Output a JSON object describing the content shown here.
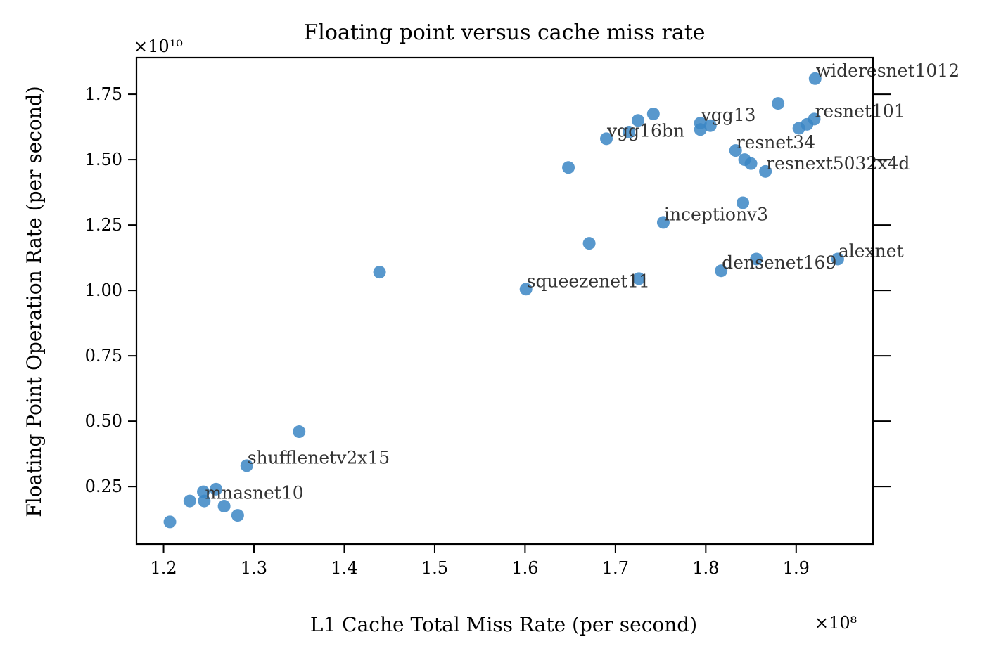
{
  "chart_data": {
    "type": "scatter",
    "title": "Floating point versus cache miss rate",
    "xlabel": "L1 Cache Total Miss Rate (per second)",
    "ylabel": "Floating Point Operation Rate (per second)",
    "x_multiplier_label": "×10⁸",
    "y_multiplier_label": "×10¹⁰",
    "xlim": [
      1.17,
      1.985
    ],
    "ylim": [
      0.03,
      1.89
    ],
    "x_ticks": [
      1.2,
      1.3,
      1.4,
      1.5,
      1.6,
      1.7,
      1.8,
      1.9
    ],
    "x_tick_labels": [
      "1.2",
      "1.3",
      "1.4",
      "1.5",
      "1.6",
      "1.7",
      "1.8",
      "1.9"
    ],
    "y_ticks": [
      0.25,
      0.5,
      0.75,
      1.0,
      1.25,
      1.5,
      1.75
    ],
    "y_tick_labels": [
      "0.25",
      "0.50",
      "0.75",
      "1.00",
      "1.25",
      "1.50",
      "1.75"
    ],
    "grid": false,
    "color": "#3b86c4",
    "points": [
      {
        "x": 1.921,
        "y": 1.81,
        "label": "wideresnet1012"
      },
      {
        "x": 1.88,
        "y": 1.715,
        "label": ""
      },
      {
        "x": 1.92,
        "y": 1.655,
        "label": "resnet101"
      },
      {
        "x": 1.912,
        "y": 1.635,
        "label": ""
      },
      {
        "x": 1.903,
        "y": 1.62,
        "label": ""
      },
      {
        "x": 1.742,
        "y": 1.675,
        "label": ""
      },
      {
        "x": 1.725,
        "y": 1.65,
        "label": ""
      },
      {
        "x": 1.715,
        "y": 1.605,
        "label": ""
      },
      {
        "x": 1.69,
        "y": 1.58,
        "label": "vgg16bn"
      },
      {
        "x": 1.794,
        "y": 1.64,
        "label": "vgg13"
      },
      {
        "x": 1.805,
        "y": 1.63,
        "label": ""
      },
      {
        "x": 1.794,
        "y": 1.615,
        "label": ""
      },
      {
        "x": 1.833,
        "y": 1.535,
        "label": "resnet34"
      },
      {
        "x": 1.843,
        "y": 1.5,
        "label": ""
      },
      {
        "x": 1.85,
        "y": 1.485,
        "label": ""
      },
      {
        "x": 1.866,
        "y": 1.455,
        "label": "resnext5032x4d"
      },
      {
        "x": 1.648,
        "y": 1.47,
        "label": ""
      },
      {
        "x": 1.841,
        "y": 1.335,
        "label": ""
      },
      {
        "x": 1.753,
        "y": 1.26,
        "label": "inceptionv3"
      },
      {
        "x": 1.671,
        "y": 1.18,
        "label": ""
      },
      {
        "x": 1.946,
        "y": 1.12,
        "label": "alexnet"
      },
      {
        "x": 1.856,
        "y": 1.12,
        "label": ""
      },
      {
        "x": 1.817,
        "y": 1.075,
        "label": "densenet169"
      },
      {
        "x": 1.726,
        "y": 1.045,
        "label": ""
      },
      {
        "x": 1.601,
        "y": 1.005,
        "label": "squeezenet11"
      },
      {
        "x": 1.439,
        "y": 1.07,
        "label": ""
      },
      {
        "x": 1.35,
        "y": 0.46,
        "label": ""
      },
      {
        "x": 1.292,
        "y": 0.33,
        "label": "shufflenetv2x15"
      },
      {
        "x": 1.258,
        "y": 0.24,
        "label": ""
      },
      {
        "x": 1.244,
        "y": 0.23,
        "label": ""
      },
      {
        "x": 1.229,
        "y": 0.195,
        "label": ""
      },
      {
        "x": 1.245,
        "y": 0.195,
        "label": "mnasnet10"
      },
      {
        "x": 1.267,
        "y": 0.175,
        "label": ""
      },
      {
        "x": 1.282,
        "y": 0.14,
        "label": ""
      },
      {
        "x": 1.207,
        "y": 0.115,
        "label": ""
      }
    ]
  }
}
